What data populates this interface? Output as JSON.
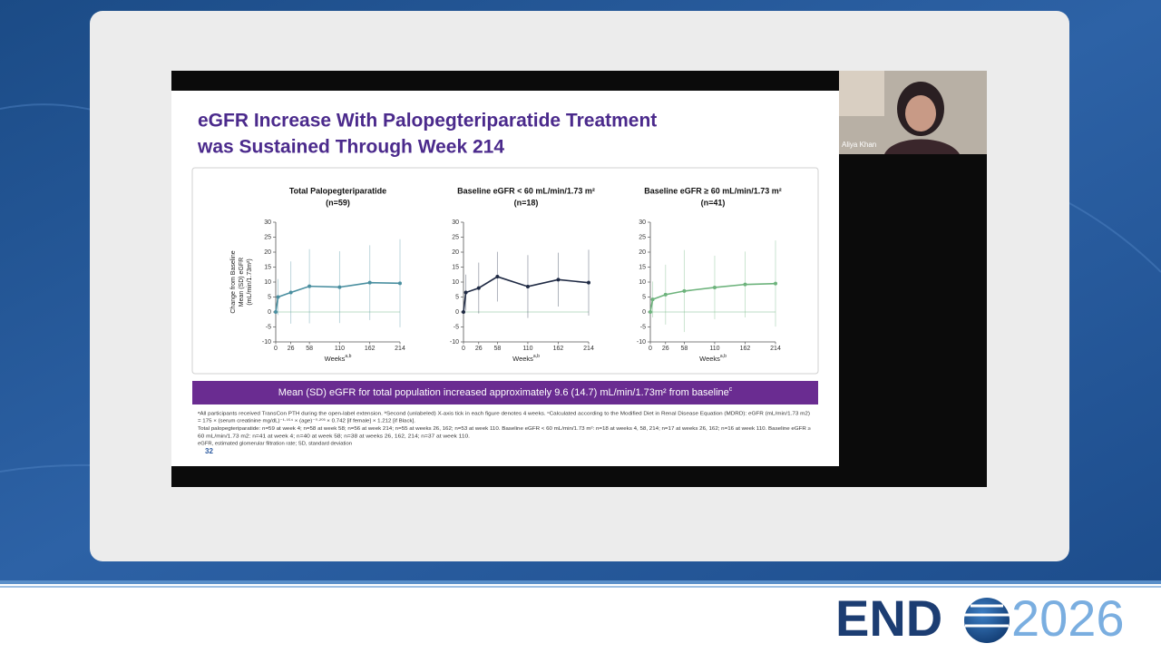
{
  "speaker": {
    "name": "Aliya Khan"
  },
  "slide": {
    "title": [
      "eGFR Increase With Palopegteriparatide Treatment",
      "was Sustained Through Week 214"
    ],
    "banner": {
      "text": "Mean (SD) eGFR for total population increased approximately 9.6 (14.7) mL/min/1.73m² from baseline",
      "sup": "c"
    },
    "footnotes": [
      "ᵃAll participants received TransCon PTH during the open-label extension. ᵇSecond (unlabeled) X-axis tick in each figure denotes 4 weeks. ᶜCalculated according to the Modified Diet in Renal Disease Equation (MDRD): eGFR (mL/min/1.73 m2)",
      "= 175 × (serum creatinine mg/dL)⁻¹·¹⁵⁴ × (age)⁻⁰·²⁰³ × 0.742 [if female] × 1.212 [if Black].",
      "Total palopegteriparatide: n=59 at week 4; n=58 at week 58; n=56 at week 214; n=55 at weeks 26, 162; n=53 at week 110. Baseline eGFR < 60 mL/min/1.73 m²: n=18 at weeks 4, 58, 214; n=17 at weeks 26, 162; n=16 at week 110. Baseline eGFR ≥",
      "60 mL/min/1.73 m2: n=41 at week 4; n=40 at week 58; n=38 at weeks 26, 162, 214; n=37 at week 110.",
      "eGFR, estimated glomerular filtration rate; SD, standard deviation"
    ],
    "page_number": "32"
  },
  "chart_data": [
    {
      "type": "line",
      "title": [
        "Total Palopegteriparatide",
        "(n=59)"
      ],
      "ylabel": [
        "Change from Baseline",
        "Mean (SD) eGFR",
        "(mL/min/1.73m²)"
      ],
      "xlabel": "Weeks",
      "xlabel_sup": "a,b",
      "x": [
        0,
        4,
        26,
        58,
        110,
        162,
        214
      ],
      "series": [
        {
          "color": "#4a8fa0",
          "values": [
            0,
            5,
            6.5,
            8.6,
            8.3,
            9.8,
            9.6
          ],
          "errors": [
            null,
            6,
            10.4,
            12.4,
            12,
            12.5,
            14.7
          ]
        }
      ],
      "xlim": [
        0,
        214
      ],
      "xticks": [
        0,
        26,
        58,
        110,
        162,
        214
      ],
      "ylim": [
        -10,
        30
      ],
      "yticks": [
        -10,
        -5,
        0,
        5,
        10,
        15,
        20,
        25,
        30
      ],
      "zero_line": true
    },
    {
      "type": "line",
      "title": [
        "Baseline eGFR < 60 mL/min/1.73 m²",
        "(n=18)"
      ],
      "xlabel": "Weeks",
      "xlabel_sup": "a,b",
      "x": [
        0,
        4,
        26,
        58,
        110,
        162,
        214
      ],
      "series": [
        {
          "color": "#1f2a44",
          "values": [
            0,
            6.5,
            8,
            11.8,
            8.5,
            10.8,
            9.8
          ],
          "errors": [
            null,
            6,
            8.5,
            8.3,
            10.5,
            9,
            11
          ]
        }
      ],
      "xlim": [
        0,
        214
      ],
      "xticks": [
        0,
        26,
        58,
        110,
        162,
        214
      ],
      "ylim": [
        -10,
        30
      ],
      "yticks": [
        -10,
        -5,
        0,
        5,
        10,
        15,
        20,
        25,
        30
      ],
      "zero_line": true
    },
    {
      "type": "line",
      "title": [
        "Baseline eGFR ≥ 60 mL/min/1.73 m²",
        "(n=41)"
      ],
      "xlabel": "Weeks",
      "xlabel_sup": "a,b",
      "x": [
        0,
        4,
        26,
        58,
        110,
        162,
        214
      ],
      "series": [
        {
          "color": "#6db37c",
          "values": [
            0,
            4.2,
            5.8,
            7,
            8.2,
            9.2,
            9.5
          ],
          "errors": [
            null,
            6,
            10,
            13.7,
            10.6,
            11,
            14.4
          ]
        }
      ],
      "xlim": [
        0,
        214
      ],
      "xticks": [
        0,
        26,
        58,
        110,
        162,
        214
      ],
      "ylim": [
        -10,
        30
      ],
      "yticks": [
        -10,
        -5,
        0,
        5,
        10,
        15,
        20,
        25,
        30
      ],
      "zero_line": true
    }
  ],
  "logo": {
    "left": "END",
    "right": "2026"
  }
}
